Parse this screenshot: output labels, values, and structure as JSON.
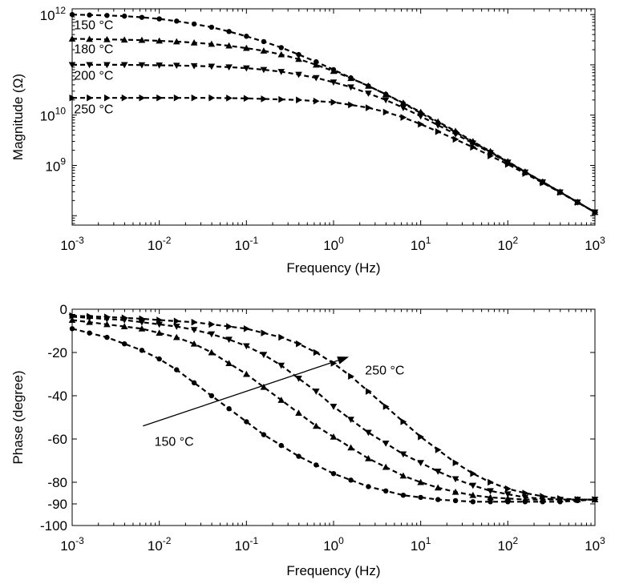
{
  "chart_data": [
    {
      "type": "line",
      "xscale": "log",
      "yscale": "log",
      "xlabel": "Frequency (Hz)",
      "ylabel": "Magnitude (Ω)",
      "xlim": [
        0.001,
        1000
      ],
      "ylim": [
        65000000,
        1300000000000
      ],
      "xticks": [
        {
          "value": 0.001,
          "base": "10",
          "exp": "-3"
        },
        {
          "value": 0.01,
          "base": "10",
          "exp": "-2"
        },
        {
          "value": 0.1,
          "base": "10",
          "exp": "-1"
        },
        {
          "value": 1,
          "base": "10",
          "exp": "0"
        },
        {
          "value": 10,
          "base": "10",
          "exp": "1"
        },
        {
          "value": 100,
          "base": "10",
          "exp": "2"
        },
        {
          "value": 1000,
          "base": "10",
          "exp": "3"
        }
      ],
      "yticks": [
        {
          "value": 1000000000,
          "base": "10",
          "exp": "9"
        },
        {
          "value": 10000000000,
          "base": "10",
          "exp": "10"
        },
        {
          "value": 1000000000000,
          "base": "10",
          "exp": "12"
        }
      ],
      "x": [
        0.001,
        0.00158,
        0.00251,
        0.00398,
        0.00631,
        0.01,
        0.0158,
        0.0251,
        0.0398,
        0.0631,
        0.1,
        0.158,
        0.251,
        0.398,
        0.631,
        1,
        1.58,
        2.51,
        3.98,
        6.31,
        10,
        15.8,
        25.1,
        39.8,
        63.1,
        100,
        158,
        251,
        398,
        631,
        1000
      ],
      "series": [
        {
          "name": "150 °C",
          "marker": "circle",
          "values": [
            1000000000000.0,
            980000000000.0,
            960000000000.0,
            930000000000.0,
            880000000000.0,
            820000000000.0,
            740000000000.0,
            650000000000.0,
            560000000000.0,
            460000000000.0,
            370000000000.0,
            290000000000.0,
            220000000000.0,
            160000000000.0,
            115000000000.0,
            80000000000.0,
            55000000000.0,
            38000000000.0,
            26000000000.0,
            17000000000.0,
            11000000000.0,
            7000000000.0,
            4600000000.0,
            2900000000.0,
            1850000000.0,
            1170000000.0,
            740000000.0,
            470000000.0,
            295000000.0,
            186000000.0,
            117000000.0
          ]
        },
        {
          "name": "180 °C",
          "marker": "triangle-up",
          "values": [
            330000000000.0,
            325000000000.0,
            320000000000.0,
            315000000000.0,
            310000000000.0,
            300000000000.0,
            290000000000.0,
            275000000000.0,
            260000000000.0,
            240000000000.0,
            215000000000.0,
            190000000000.0,
            160000000000.0,
            130000000000.0,
            100000000000.0,
            75000000000.0,
            54000000000.0,
            38000000000.0,
            26000000000.0,
            17500000000.0,
            11500000000.0,
            7400000000.0,
            4800000000.0,
            3000000000.0,
            1900000000.0,
            1200000000.0,
            750000000.0,
            475000000.0,
            297000000.0,
            187000000.0,
            117000000.0
          ]
        },
        {
          "name": "200 °C",
          "marker": "triangle-down",
          "values": [
            100000000000.0,
            100000000000.0,
            100000000000.0,
            100000000000.0,
            99000000000.0,
            98000000000.0,
            97000000000.0,
            95000000000.0,
            93000000000.0,
            90000000000.0,
            86000000000.0,
            80000000000.0,
            73000000000.0,
            64000000000.0,
            55000000000.0,
            45000000000.0,
            36000000000.0,
            27000000000.0,
            20000000000.0,
            14000000000.0,
            9500000000.0,
            6300000000.0,
            4200000000.0,
            2750000000.0,
            1780000000.0,
            1150000000.0,
            730000000.0,
            465000000.0,
            293000000.0,
            185000000.0,
            117000000.0
          ]
        },
        {
          "name": "250 °C",
          "marker": "triangle-right",
          "values": [
            22000000000.0,
            22000000000.0,
            22000000000.0,
            22000000000.0,
            22000000000.0,
            22000000000.0,
            22000000000.0,
            22000000000.0,
            22000000000.0,
            21800000000.0,
            21500000000.0,
            21000000000.0,
            20500000000.0,
            20000000000.0,
            19000000000.0,
            18000000000.0,
            16000000000.0,
            14000000000.0,
            11500000000.0,
            9000000000.0,
            6600000000.0,
            4700000000.0,
            3300000000.0,
            2300000000.0,
            1550000000.0,
            1050000000.0,
            690000000.0,
            450000000.0,
            290000000.0,
            184000000.0,
            117000000.0
          ]
        }
      ],
      "annotations": [
        {
          "text": "150 °C",
          "x": 0.00105,
          "y": 630000000000.0
        },
        {
          "text": "180 °C",
          "x": 0.00105,
          "y": 210000000000.0
        },
        {
          "text": "200 °C",
          "x": 0.00105,
          "y": 63000000000.0
        },
        {
          "text": "250 °C",
          "x": 0.00105,
          "y": 13500000000.0
        }
      ]
    },
    {
      "type": "line",
      "xscale": "log",
      "yscale": "linear",
      "xlabel": "Frequency (Hz)",
      "ylabel": "Phase (degree)",
      "xlim": [
        0.001,
        1000
      ],
      "ylim": [
        -100,
        0
      ],
      "xticks": [
        {
          "value": 0.001,
          "base": "10",
          "exp": "-3"
        },
        {
          "value": 0.01,
          "base": "10",
          "exp": "-2"
        },
        {
          "value": 0.1,
          "base": "10",
          "exp": "-1"
        },
        {
          "value": 1,
          "base": "10",
          "exp": "0"
        },
        {
          "value": 10,
          "base": "10",
          "exp": "1"
        },
        {
          "value": 100,
          "base": "10",
          "exp": "2"
        },
        {
          "value": 1000,
          "base": "10",
          "exp": "3"
        }
      ],
      "yticks": [
        {
          "value": 0,
          "label": "0"
        },
        {
          "value": -20,
          "label": "-20"
        },
        {
          "value": -40,
          "label": "-40"
        },
        {
          "value": -60,
          "label": "-60"
        },
        {
          "value": -80,
          "label": "-80"
        },
        {
          "value": -90,
          "label": "-90"
        },
        {
          "value": -100,
          "label": "-100"
        }
      ],
      "x": [
        0.001,
        0.00158,
        0.00251,
        0.00398,
        0.00631,
        0.01,
        0.0158,
        0.0251,
        0.0398,
        0.0631,
        0.1,
        0.158,
        0.251,
        0.398,
        0.631,
        1,
        1.58,
        2.51,
        3.98,
        6.31,
        10,
        15.8,
        25.1,
        39.8,
        63.1,
        100,
        158,
        251,
        398,
        631,
        1000
      ],
      "series": [
        {
          "name": "150 °C",
          "marker": "circle",
          "values": [
            -9,
            -11,
            -13,
            -16,
            -19,
            -23,
            -28,
            -34,
            -40,
            -46,
            -52,
            -58,
            -63,
            -68,
            -72,
            -76,
            -79,
            -82,
            -84,
            -86,
            -87,
            -88,
            -88.5,
            -89,
            -89,
            -89,
            -89,
            -89,
            -89,
            -88.5,
            -88
          ]
        },
        {
          "name": "180 °C",
          "marker": "triangle-up",
          "values": [
            -5,
            -6,
            -7,
            -8,
            -9,
            -11,
            -13,
            -16,
            -20,
            -25,
            -30,
            -36,
            -42,
            -48,
            -54,
            -59,
            -64,
            -69,
            -73,
            -77,
            -80,
            -82.5,
            -84.5,
            -86,
            -87,
            -87.5,
            -88,
            -88,
            -88,
            -88,
            -88
          ]
        },
        {
          "name": "200 °C",
          "marker": "triangle-down",
          "values": [
            -3.5,
            -4,
            -4.5,
            -5,
            -6,
            -7,
            -8,
            -9.5,
            -11.5,
            -14,
            -17,
            -21,
            -26,
            -32,
            -38,
            -45,
            -51,
            -57,
            -62,
            -67,
            -71,
            -75,
            -78.5,
            -81.5,
            -84,
            -85.5,
            -87,
            -87.5,
            -88,
            -88,
            -88
          ]
        },
        {
          "name": "250 °C",
          "marker": "triangle-right",
          "values": [
            -3,
            -3.3,
            -3.6,
            -4,
            -4.4,
            -5,
            -5.5,
            -6,
            -7,
            -8,
            -9,
            -11,
            -13,
            -16,
            -20,
            -25,
            -31,
            -38,
            -45,
            -52,
            -59,
            -65,
            -71,
            -76,
            -80,
            -83,
            -85,
            -86.5,
            -87.5,
            -88,
            -88
          ]
        }
      ],
      "annotations": [
        {
          "text": "250 °C",
          "x": 2.3,
          "y": -28
        },
        {
          "text": "150 °C",
          "x": 0.0088,
          "y": -61
        }
      ],
      "arrow": {
        "from": [
          0.0065,
          -54
        ],
        "to": [
          1.5,
          -22
        ]
      }
    }
  ]
}
